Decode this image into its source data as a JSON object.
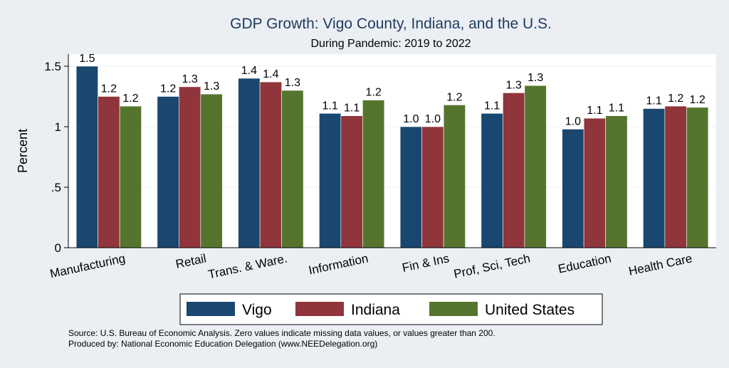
{
  "chart_data": {
    "type": "bar",
    "title": "GDP Growth: Vigo County, Indiana, and the U.S.",
    "subtitle": "During Pandemic: 2019 to 2022",
    "ylabel": "Percent",
    "xlabel": "",
    "ylim": [
      0,
      1.6
    ],
    "yticks": [
      0,
      0.5,
      1,
      1.5
    ],
    "ytick_labels": [
      "0",
      ".5",
      "1",
      "1.5"
    ],
    "grid": true,
    "legend_position": "bottom",
    "categories": [
      "Manufacturing",
      "Retail",
      "Trans. & Ware.",
      "Information",
      "Fin & Ins",
      "Prof, Sci, Tech",
      "Education",
      "Health Care"
    ],
    "series": [
      {
        "name": "Vigo",
        "color": "#1a476f",
        "values": [
          1.5,
          1.25,
          1.4,
          1.11,
          1.0,
          1.11,
          0.98,
          1.15
        ],
        "labels": [
          "1.5",
          "1.2",
          "1.4",
          "1.1",
          "1.0",
          "1.1",
          "1.0",
          "1.1"
        ]
      },
      {
        "name": "Indiana",
        "color": "#90353b",
        "values": [
          1.25,
          1.33,
          1.37,
          1.09,
          1.0,
          1.28,
          1.07,
          1.17
        ],
        "labels": [
          "1.2",
          "1.3",
          "1.4",
          "1.1",
          "1.0",
          "1.3",
          "1.1",
          "1.2"
        ]
      },
      {
        "name": "United States",
        "color": "#55752f",
        "values": [
          1.17,
          1.27,
          1.3,
          1.22,
          1.18,
          1.34,
          1.09,
          1.16
        ],
        "labels": [
          "1.2",
          "1.3",
          "1.3",
          "1.2",
          "1.2",
          "1.3",
          "1.1",
          "1.2"
        ]
      }
    ],
    "notes": [
      "Source: U.S. Bureau of Economic Analysis. Zero values indicate missing data values, or values greater than 200.",
      "Produced by: National Economic Education Delegation (www.NEEDelegation.org)"
    ]
  }
}
